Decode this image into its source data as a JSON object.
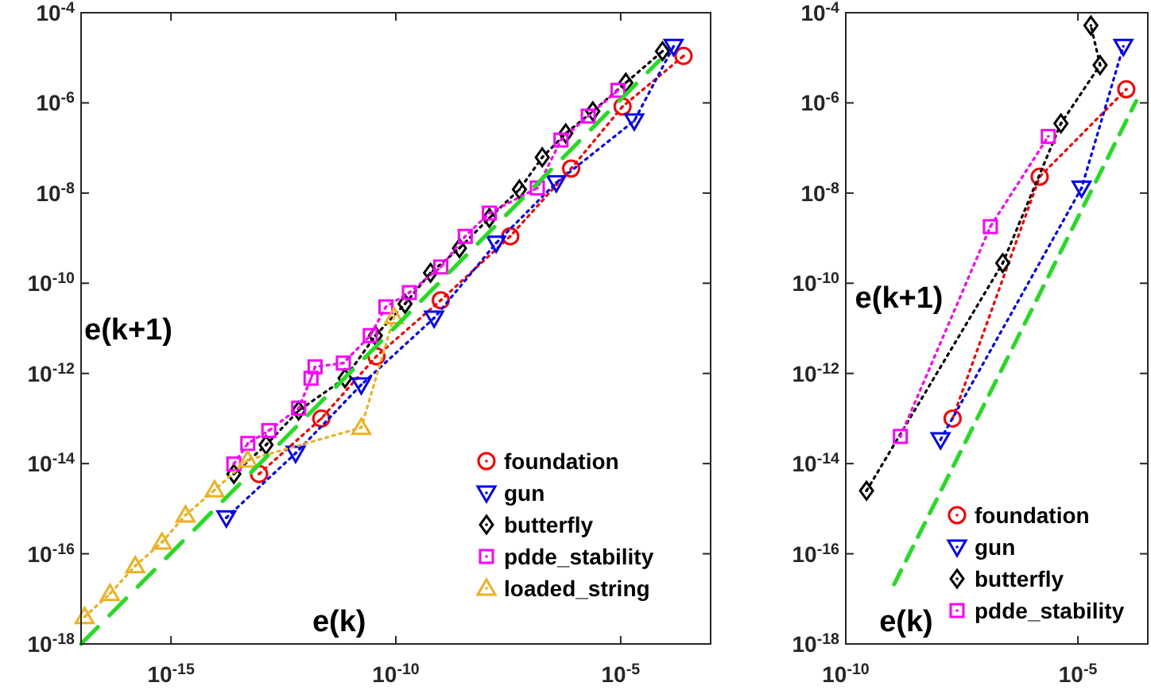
{
  "chart_data": [
    {
      "type": "line",
      "xlabel": "e(k)",
      "ylabel": "e(k+1)",
      "log": "xy",
      "legend": "bottom right",
      "xlim": [
        1e-17,
        0.001
      ],
      "ylim": [
        1e-18,
        0.0001
      ],
      "xticks": [
        {
          "value": 1e-15,
          "label": "10$^{-15}$"
        },
        {
          "value": 1e-10,
          "label": "10$^{-10}$"
        },
        {
          "value": 1e-05,
          "label": "10$^{-5}$"
        }
      ],
      "yticks": [
        {
          "value": 1e-18,
          "label": "10$^{-18}$"
        },
        {
          "value": 1e-16,
          "label": "10$^{-16}$"
        },
        {
          "value": 1e-14,
          "label": "10$^{-14}$"
        },
        {
          "value": 1e-12,
          "label": "10$^{-12}$"
        },
        {
          "value": 1e-10,
          "label": "10$^{-10}$"
        },
        {
          "value": 1e-08,
          "label": "10$^{-8}$"
        },
        {
          "value": 1e-06,
          "label": "10$^{-6}$"
        },
        {
          "value": 0.0001,
          "label": "10$^{-4}$"
        }
      ],
      "series": [
        {
          "name": "foundation",
          "color": "#ff0000",
          "marker": "circle",
          "line_style": "dotted",
          "x": [
            9.1e-14,
            2.2e-12,
            3.7e-11,
            1e-09,
            3.5e-08,
            7.9e-07,
            1.1e-05,
            0.00025
          ],
          "values": [
            5.9e-15,
            1e-13,
            2.4e-12,
            4.2e-11,
            1.1e-09,
            3.5e-08,
            8.3e-07,
            1.1e-05
          ]
        },
        {
          "name": "gun",
          "color": "#0000ff",
          "marker": "triangle-down",
          "line_style": "dotted",
          "x": [
            1.7e-14,
            5.9e-13,
            1.7e-11,
            7.1e-10,
            1.7e-08,
            3.7e-07,
            2e-05,
            0.00015
          ],
          "values": [
            6.3e-16,
            1.7e-14,
            5.6e-13,
            1.7e-11,
            7.8e-10,
            1.7e-08,
            4e-07,
            1.8e-05
          ]
        },
        {
          "name": "butterfly",
          "color": "#000000",
          "marker": "diamond",
          "line_style": "dotted",
          "x": [
            2.5e-14,
            1.3e-13,
            6.9e-13,
            7.4e-12,
            3.5e-11,
            1.6e-10,
            5.9e-10,
            2.6e-09,
            1.2e-08,
            5.6e-08,
            1.8e-07,
            6e-07,
            2.4e-06,
            1.3e-05,
            8.5e-05
          ],
          "values": [
            5.9e-15,
            2.6e-14,
            1.5e-13,
            7.8e-13,
            6.9e-12,
            3.5e-11,
            1.7e-10,
            6e-10,
            2.8e-09,
            1.2e-08,
            6.2e-08,
            2.1e-07,
            6.5e-07,
            2.8e-06,
            1.4e-05
          ]
        },
        {
          "name": "pdde_stability",
          "color": "#ff00ff",
          "marker": "square",
          "line_style": "dotted",
          "x": [
            2.5e-14,
            5.1e-14,
            1.5e-13,
            6.9e-13,
            1.3e-12,
            1.6e-12,
            6.8e-12,
            2.7e-11,
            6e-11,
            2e-10,
            1e-09,
            3.5e-09,
            1.2e-08,
            1.4e-07,
            4.7e-07,
            1.9e-06,
            8.7e-06
          ],
          "values": [
            9.8e-15,
            2.8e-14,
            5.4e-14,
            1.7e-13,
            7.8e-13,
            1.4e-12,
            1.7e-12,
            6.9e-12,
            3e-11,
            6.2e-11,
            2.3e-10,
            1.1e-09,
            3.6e-09,
            1.3e-08,
            1.5e-07,
            5.1e-07,
            1.9e-06
          ]
        },
        {
          "name": "loaded_string",
          "color": "#edb120",
          "marker": "triangle",
          "line_style": "dotted",
          "x": [
            1.2e-17,
            4.4e-17,
            1.6e-16,
            6.3e-16,
            2.1e-15,
            9.3e-15,
            5.1e-14,
            1.7e-11,
            9.1e-11
          ],
          "values": [
            4e-18,
            1.3e-17,
            5.4e-17,
            1.8e-16,
            7.2e-16,
            2.6e-15,
            1.2e-14,
            6.3e-14,
            1.8e-11
          ]
        },
        {
          "color": "#22dd22",
          "marker": "none",
          "line_style": "dashed",
          "x": [
            1e-17,
            7.2e-05
          ],
          "values": [
            1e-18,
            8.7e-06
          ]
        }
      ]
    },
    {
      "type": "line",
      "xlabel": "e(k)",
      "ylabel": "e(k+1)",
      "log": "xy",
      "legend": "bottom right",
      "xlim": [
        1e-10,
        0.00032
      ],
      "ylim": [
        1e-18,
        0.0001
      ],
      "xticks": [
        {
          "value": 1e-10,
          "label": "10$^{-10}$"
        },
        {
          "value": 1e-05,
          "label": "10$^{-5}$"
        }
      ],
      "yticks": [
        {
          "value": 1e-18,
          "label": "10$^{-18}$"
        },
        {
          "value": 1e-16,
          "label": "10$^{-16}$"
        },
        {
          "value": 1e-14,
          "label": "10$^{-14}$"
        },
        {
          "value": 1e-12,
          "label": "10$^{-12}$"
        },
        {
          "value": 1e-10,
          "label": "10$^{-10}$"
        },
        {
          "value": 1e-08,
          "label": "10$^{-8}$"
        },
        {
          "value": 1e-06,
          "label": "10$^{-6}$"
        },
        {
          "value": 0.0001,
          "label": "10$^{-4}$"
        }
      ],
      "series": [
        {
          "name": "foundation",
          "color": "#ff0000",
          "marker": "circle",
          "line_style": "dotted",
          "x": [
            2e-08,
            1.5e-06,
            0.00011
          ],
          "values": [
            1e-13,
            2.3e-08,
            2e-06
          ]
        },
        {
          "name": "gun",
          "color": "#0000ff",
          "marker": "triangle-down",
          "line_style": "dotted",
          "x": [
            1.1e-08,
            1.2e-05,
            9.5e-05
          ],
          "values": [
            3.4e-14,
            1.3e-08,
            1.8e-05
          ]
        },
        {
          "name": "butterfly",
          "color": "#000000",
          "marker": "diamond",
          "line_style": "dotted",
          "x": [
            2.8e-10,
            2.4e-07,
            4.3e-06,
            3e-05,
            1.9e-05
          ],
          "values": [
            2.5e-15,
            2.8e-10,
            3.5e-07,
            6.9e-06,
            5.2e-05
          ]
        },
        {
          "name": "pdde_stability",
          "color": "#ff00ff",
          "marker": "square",
          "line_style": "dotted",
          "x": [
            1.5e-09,
            1.3e-07,
            2.3e-06
          ],
          "values": [
            4e-14,
            1.8e-09,
            1.8e-07
          ]
        },
        {
          "color": "#22dd22",
          "marker": "none",
          "line_style": "dashed",
          "x": [
            1.1e-09,
            0.00018
          ],
          "values": [
            2.1e-17,
            1.1e-06
          ]
        }
      ]
    }
  ]
}
